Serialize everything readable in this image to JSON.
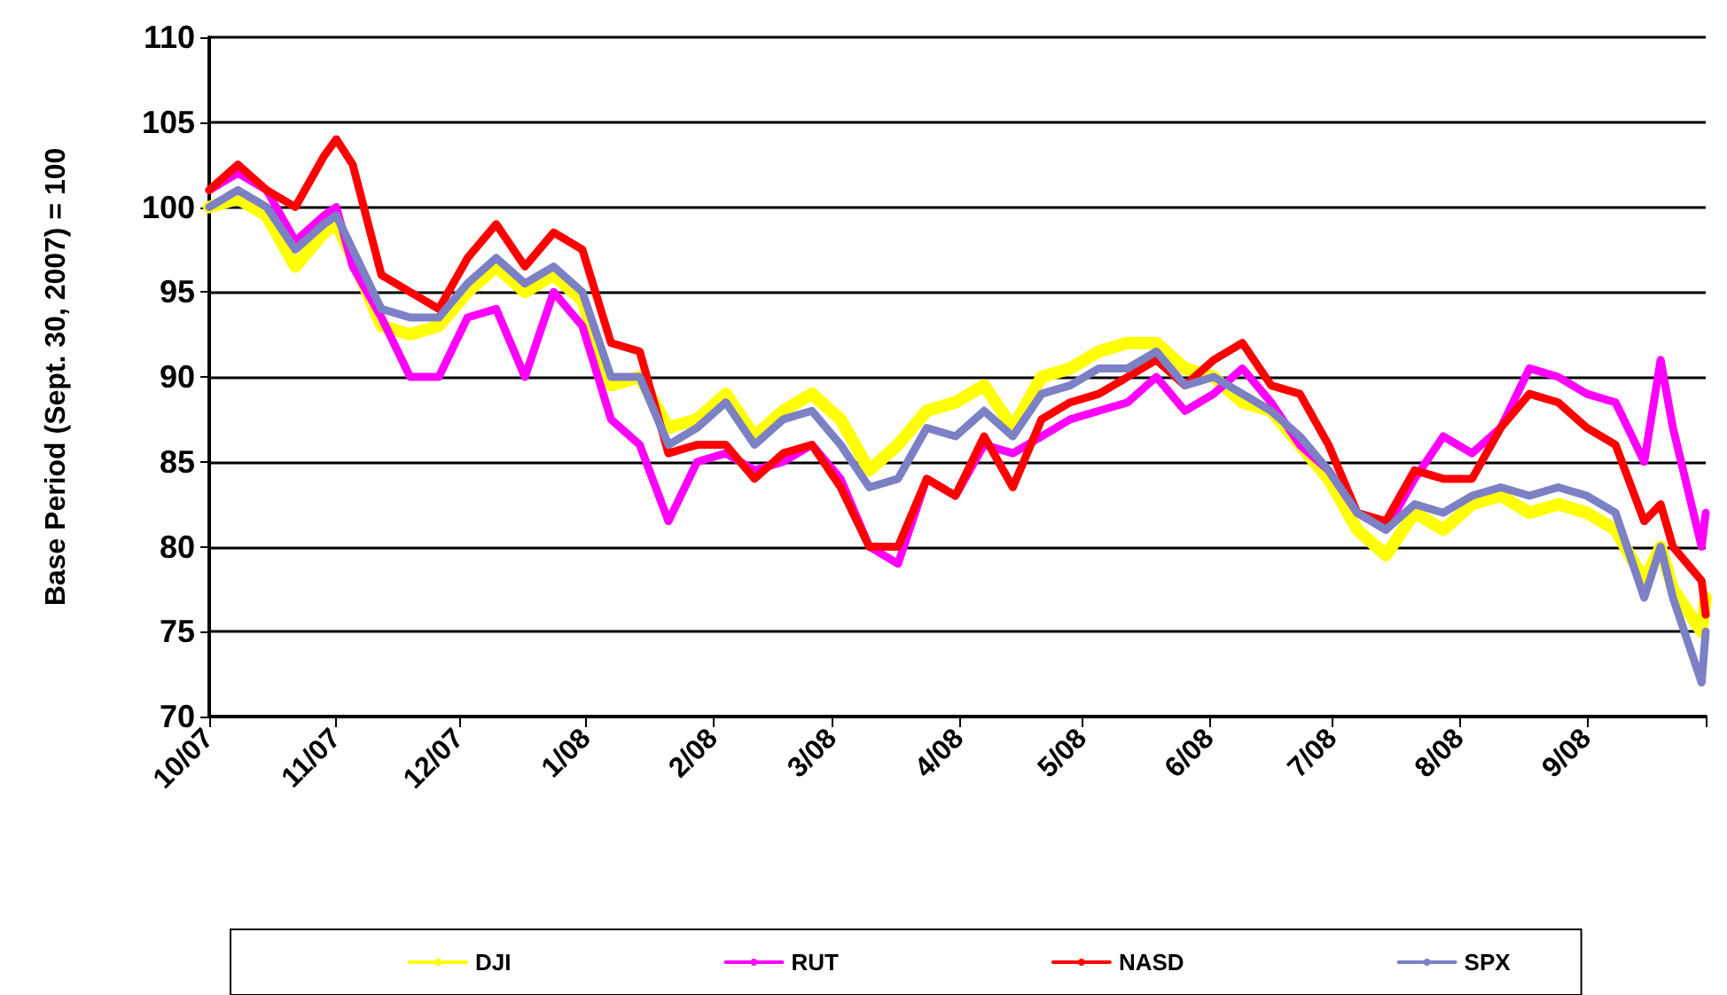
{
  "chart_data": {
    "type": "line",
    "ylabel": "Base Period (Sept. 30, 2007) = 100",
    "x": [
      "2007-10-01",
      "2007-10-08",
      "2007-10-15",
      "2007-10-22",
      "2007-10-29",
      "2007-11-01",
      "2007-11-05",
      "2007-11-12",
      "2007-11-19",
      "2007-11-26",
      "2007-12-03",
      "2007-12-10",
      "2007-12-17",
      "2007-12-24",
      "2007-12-31",
      "2008-01-07",
      "2008-01-14",
      "2008-01-21",
      "2008-01-28",
      "2008-02-04",
      "2008-02-11",
      "2008-02-18",
      "2008-02-25",
      "2008-03-03",
      "2008-03-10",
      "2008-03-17",
      "2008-03-24",
      "2008-03-31",
      "2008-04-07",
      "2008-04-14",
      "2008-04-21",
      "2008-04-28",
      "2008-05-05",
      "2008-05-12",
      "2008-05-19",
      "2008-05-26",
      "2008-06-02",
      "2008-06-09",
      "2008-06-16",
      "2008-06-23",
      "2008-06-30",
      "2008-07-07",
      "2008-07-14",
      "2008-07-21",
      "2008-07-28",
      "2008-08-04",
      "2008-08-11",
      "2008-08-18",
      "2008-08-25",
      "2008-09-01",
      "2008-09-08",
      "2008-09-15",
      "2008-09-19",
      "2008-09-22",
      "2008-09-29",
      "2008-09-30"
    ],
    "series": [
      {
        "name": "DJI",
        "color": "#ffff00",
        "values": [
          100,
          100.5,
          99.5,
          96.5,
          98.5,
          99,
          97,
          93,
          92.5,
          93,
          95,
          96.5,
          95,
          96,
          94.5,
          89.5,
          90,
          87,
          87.5,
          89,
          86.5,
          88,
          89,
          87.5,
          84.5,
          86,
          88,
          88.5,
          89.5,
          87,
          90,
          90.5,
          91.5,
          92,
          92,
          90.5,
          90,
          88.5,
          88,
          86,
          84,
          81,
          79.5,
          82,
          81,
          82.5,
          83,
          82,
          82.5,
          82,
          81,
          78,
          80,
          77.5,
          75,
          77
        ]
      },
      {
        "name": "RUT",
        "color": "#ff00ff",
        "values": [
          101,
          102,
          101,
          98,
          99.5,
          100,
          96.5,
          93.5,
          90,
          90,
          93.5,
          94,
          90,
          95,
          93,
          87.5,
          86,
          81.5,
          85,
          85.5,
          84.5,
          85,
          86,
          84,
          80,
          79,
          84,
          83,
          86,
          85.5,
          86.5,
          87.5,
          88,
          88.5,
          90,
          88,
          89,
          90.5,
          88.5,
          86,
          84.5,
          82,
          81,
          84,
          86.5,
          85.5,
          87,
          90.5,
          90,
          89,
          88.5,
          85,
          91,
          87,
          80,
          82
        ]
      },
      {
        "name": "NASD",
        "color": "#ff0000",
        "values": [
          101,
          102.5,
          101,
          100,
          103,
          104,
          102.5,
          96,
          95,
          94,
          97,
          99,
          96.5,
          98.5,
          97.5,
          92,
          91.5,
          85.5,
          86,
          86,
          84,
          85.5,
          86,
          83.5,
          80,
          80,
          84,
          83,
          86.5,
          83.5,
          87.5,
          88.5,
          89,
          90,
          91,
          89.5,
          91,
          92,
          89.5,
          89,
          86,
          82,
          81.5,
          84.5,
          84,
          84,
          87,
          89,
          88.5,
          87,
          86,
          81.5,
          82.5,
          80,
          78,
          76
        ]
      },
      {
        "name": "SPX",
        "color": "#7c80c4",
        "values": [
          100,
          101,
          100,
          97.5,
          99,
          99.5,
          97.5,
          94,
          93.5,
          93.5,
          95.5,
          97,
          95.5,
          96.5,
          95,
          90,
          90,
          86,
          87,
          88.5,
          86,
          87.5,
          88,
          86,
          83.5,
          84,
          87,
          86.5,
          88,
          86.5,
          89,
          89.5,
          90.5,
          90.5,
          91.5,
          89.5,
          90,
          89,
          88,
          86.5,
          84.5,
          82,
          81,
          82.5,
          82,
          83,
          83.5,
          83,
          83.5,
          83,
          82,
          77,
          80,
          77,
          72,
          75
        ]
      }
    ],
    "xlim": [
      "2007-10-01",
      "2008-09-30"
    ],
    "xticks": [
      {
        "value": "2007-10-01",
        "label": "10/07"
      },
      {
        "value": "2007-11-01",
        "label": "11/07"
      },
      {
        "value": "2007-12-01",
        "label": "12/07"
      },
      {
        "value": "2008-01-01",
        "label": "1/08"
      },
      {
        "value": "2008-02-01",
        "label": "2/08"
      },
      {
        "value": "2008-03-01",
        "label": "3/08"
      },
      {
        "value": "2008-04-01",
        "label": "4/08"
      },
      {
        "value": "2008-05-01",
        "label": "5/08"
      },
      {
        "value": "2008-06-01",
        "label": "6/08"
      },
      {
        "value": "2008-07-01",
        "label": "7/08"
      },
      {
        "value": "2008-08-01",
        "label": "8/08"
      },
      {
        "value": "2008-09-01",
        "label": "9/08"
      },
      {
        "value": "2008-09-30",
        "label": null
      }
    ],
    "ylim": [
      70,
      110
    ],
    "yticks": [
      70,
      75,
      80,
      85,
      90,
      95,
      100,
      105,
      110
    ],
    "grid": "y",
    "legend": "bottom",
    "marker": "none",
    "line_style": "solid"
  }
}
